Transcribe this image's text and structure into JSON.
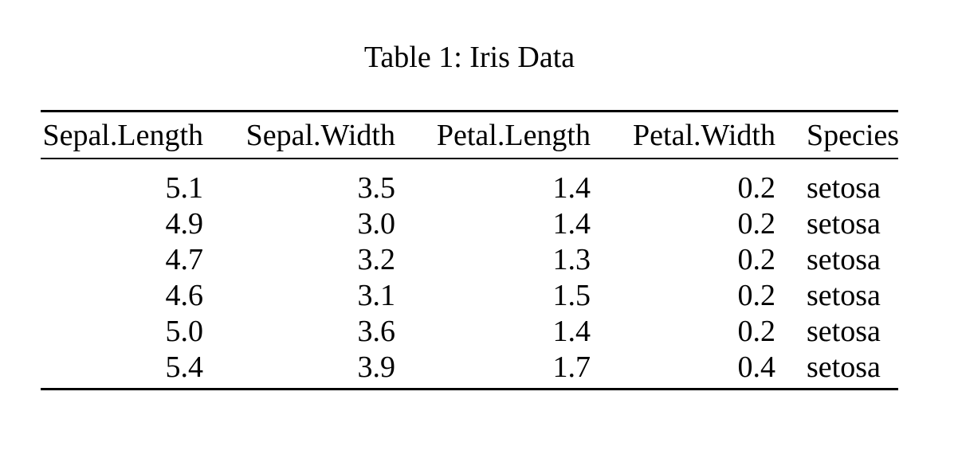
{
  "document": {
    "caption": "Table 1: Iris Data"
  },
  "table": {
    "columns": [
      "Sepal.Length",
      "Sepal.Width",
      "Petal.Length",
      "Petal.Width",
      "Species"
    ],
    "rows": [
      [
        "5.1",
        "3.5",
        "1.4",
        "0.2",
        "setosa"
      ],
      [
        "4.9",
        "3.0",
        "1.4",
        "0.2",
        "setosa"
      ],
      [
        "4.7",
        "3.2",
        "1.3",
        "0.2",
        "setosa"
      ],
      [
        "4.6",
        "3.1",
        "1.5",
        "0.2",
        "setosa"
      ],
      [
        "5.0",
        "3.6",
        "1.4",
        "0.2",
        "setosa"
      ],
      [
        "5.4",
        "3.9",
        "1.7",
        "0.4",
        "setosa"
      ]
    ]
  },
  "chart_data": {
    "type": "table",
    "title": "Table 1: Iris Data",
    "columns": [
      "Sepal.Length",
      "Sepal.Width",
      "Petal.Length",
      "Petal.Width",
      "Species"
    ],
    "rows": [
      [
        "5.1",
        "3.5",
        "1.4",
        "0.2",
        "setosa"
      ],
      [
        "4.9",
        "3.0",
        "1.4",
        "0.2",
        "setosa"
      ],
      [
        "4.7",
        "3.2",
        "1.3",
        "0.2",
        "setosa"
      ],
      [
        "4.6",
        "3.1",
        "1.5",
        "0.2",
        "setosa"
      ],
      [
        "5.0",
        "3.6",
        "1.4",
        "0.2",
        "setosa"
      ],
      [
        "5.4",
        "3.9",
        "1.7",
        "0.4",
        "setosa"
      ]
    ]
  },
  "colors": {
    "background": "#ffffff",
    "text": "#000000",
    "rule": "#000000"
  }
}
